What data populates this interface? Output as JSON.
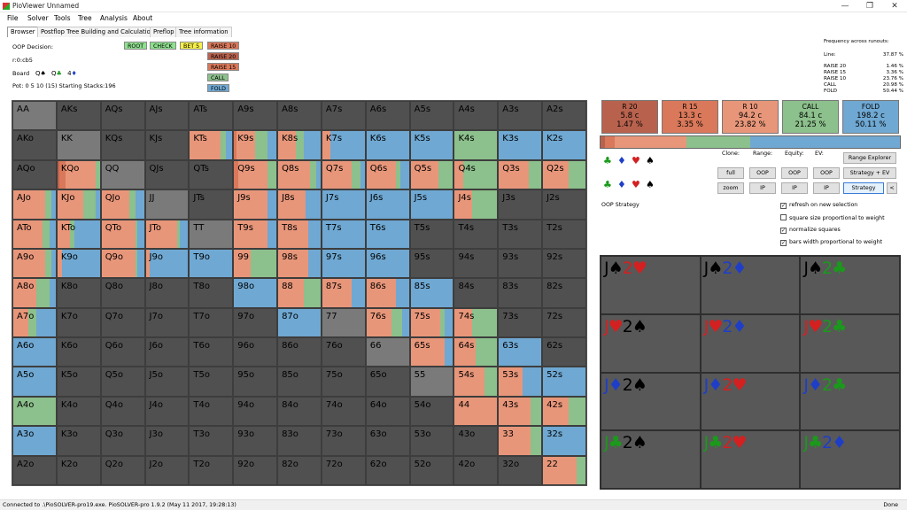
{
  "window": {
    "title": "PioViewer Unnamed",
    "minimize": "—",
    "restore": "❐",
    "close": "✕"
  },
  "menu": [
    "File",
    "Solver",
    "Tools",
    "Tree",
    "Analysis",
    "About"
  ],
  "tabs": [
    "Browser",
    "Postflop Tree Building and Calculations",
    "Preflop",
    "Tree information"
  ],
  "info": {
    "decision": "OOP Decision:",
    "line": "r:0:cb5",
    "board_label": "Board",
    "board_cards": [
      {
        "rank": "Q",
        "suit": "♠",
        "color": "#000000"
      },
      {
        "rank": "Q",
        "suit": "♣",
        "color": "#1a9a1a"
      },
      {
        "rank": "4",
        "suit": "♦",
        "color": "#1e3ec8"
      }
    ],
    "pot": "Pot: 0 5 10 (15) Starting Stacks:196"
  },
  "tree_buttons": {
    "root": "ROOT",
    "check": "CHECK",
    "bet": "BET 5",
    "raise10": "RAISE 10",
    "raise20": "RAISE 20",
    "raise15": "RAISE 15",
    "call": "CALL",
    "fold": "FOLD"
  },
  "frequency": {
    "title": "Frequency across runouts:",
    "rows": [
      {
        "label": "Line:",
        "value": "37.87 %"
      },
      {
        "label": "RAISE 20",
        "value": "1.46 %"
      },
      {
        "label": "RAISE 15",
        "value": "3.36 %"
      },
      {
        "label": "RAISE 10",
        "value": "23.76 %"
      },
      {
        "label": "CALL",
        "value": "20.98 %"
      },
      {
        "label": "FOLD",
        "value": "50.44 %"
      }
    ]
  },
  "colors": {
    "r20": "#b8624e",
    "r15": "#d9785a",
    "r10": "#e8967a",
    "call": "#8cc08c",
    "fold": "#6fa8d2",
    "empty": "#505050"
  },
  "strategy_boxes": [
    {
      "name": "R 20",
      "combos": "5.8 c",
      "pct": "1.47 %",
      "color": "#b8624e"
    },
    {
      "name": "R 15",
      "combos": "13.3 c",
      "pct": "3.35 %",
      "color": "#d9785a"
    },
    {
      "name": "R 10",
      "combos": "94.2 c",
      "pct": "23.82 %",
      "color": "#e8967a"
    },
    {
      "name": "CALL",
      "combos": "84.1 c",
      "pct": "21.25 %",
      "color": "#8cc08c"
    },
    {
      "name": "FOLD",
      "combos": "198.2 c",
      "pct": "50.11 %",
      "color": "#6fa8d2"
    }
  ],
  "strategy_bar": [
    1.47,
    3.35,
    23.82,
    21.25,
    50.11
  ],
  "controls": {
    "clone": "Clone:",
    "range": "Range:",
    "equity": "Equity:",
    "ev": "EV:",
    "full": "full",
    "zoom": "zoom",
    "oop": "OOP",
    "ip": "IP",
    "range_explorer": "Range Explorer",
    "strategy_ev": "Strategy + EV",
    "strategy": "Strategy",
    "back": "<",
    "oop_strategy": "OOP Strategy",
    "chk_refresh": "refresh on new selection",
    "chk_square": "square size proportional to weight",
    "chk_normalize": "normalize squares",
    "chk_bars": "bars width proportional to weight"
  },
  "hand_matrix": [
    [
      {
        "h": "AA",
        "s": []
      },
      {
        "h": "AKs",
        "s": []
      },
      {
        "h": "AQs",
        "s": []
      },
      {
        "h": "AJs",
        "s": []
      },
      {
        "h": "ATs",
        "s": []
      },
      {
        "h": "A9s",
        "s": []
      },
      {
        "h": "A8s",
        "s": []
      },
      {
        "h": "A7s",
        "s": []
      },
      {
        "h": "A6s",
        "s": []
      },
      {
        "h": "A5s",
        "s": []
      },
      {
        "h": "A4s",
        "s": []
      },
      {
        "h": "A3s",
        "s": []
      },
      {
        "h": "A2s",
        "s": []
      }
    ],
    [
      {
        "h": "AKo",
        "s": []
      },
      {
        "h": "KK",
        "s": []
      },
      {
        "h": "KQs",
        "s": []
      },
      {
        "h": "KJs",
        "s": []
      },
      {
        "h": "KTs",
        "s": [
          0,
          0,
          72,
          12,
          16
        ]
      },
      {
        "h": "K9s",
        "s": [
          0,
          5,
          45,
          30,
          20
        ]
      },
      {
        "h": "K8s",
        "s": [
          0,
          0,
          42,
          18,
          40
        ]
      },
      {
        "h": "K7s",
        "s": [
          0,
          0,
          20,
          0,
          80
        ]
      },
      {
        "h": "K6s",
        "s": [
          0,
          0,
          0,
          0,
          100
        ]
      },
      {
        "h": "K5s",
        "s": [
          0,
          0,
          0,
          0,
          100
        ]
      },
      {
        "h": "K4s",
        "s": [
          0,
          0,
          0,
          100,
          0
        ]
      },
      {
        "h": "K3s",
        "s": [
          0,
          0,
          0,
          0,
          100
        ]
      },
      {
        "h": "K2s",
        "s": [
          0,
          0,
          0,
          0,
          100
        ]
      }
    ],
    [
      {
        "h": "AQo",
        "s": []
      },
      {
        "h": "KQo",
        "s": [
          5,
          15,
          70,
          10,
          0
        ]
      },
      {
        "h": "QQ",
        "s": []
      },
      {
        "h": "QJs",
        "s": []
      },
      {
        "h": "QTs",
        "s": []
      },
      {
        "h": "Q9s",
        "s": [
          0,
          10,
          70,
          20,
          0
        ]
      },
      {
        "h": "Q8s",
        "s": [
          0,
          0,
          75,
          15,
          10
        ]
      },
      {
        "h": "Q7s",
        "s": [
          0,
          0,
          70,
          20,
          10
        ]
      },
      {
        "h": "Q6s",
        "s": [
          0,
          0,
          70,
          10,
          20
        ]
      },
      {
        "h": "Q5s",
        "s": [
          0,
          0,
          65,
          35,
          0
        ]
      },
      {
        "h": "Q4s",
        "s": [
          0,
          0,
          20,
          80,
          0
        ]
      },
      {
        "h": "Q3s",
        "s": [
          0,
          0,
          70,
          30,
          0
        ]
      },
      {
        "h": "Q2s",
        "s": [
          0,
          0,
          60,
          40,
          0
        ]
      }
    ],
    [
      {
        "h": "AJo",
        "s": [
          0,
          0,
          75,
          15,
          10
        ]
      },
      {
        "h": "KJo",
        "s": [
          0,
          0,
          60,
          30,
          10
        ]
      },
      {
        "h": "QJo",
        "s": [
          0,
          0,
          65,
          15,
          20
        ]
      },
      {
        "h": "JJ",
        "s": []
      },
      {
        "h": "JTs",
        "s": []
      },
      {
        "h": "J9s",
        "s": [
          0,
          0,
          80,
          0,
          20
        ]
      },
      {
        "h": "J8s",
        "s": [
          0,
          0,
          65,
          0,
          35
        ]
      },
      {
        "h": "J7s",
        "s": [
          0,
          0,
          0,
          0,
          100
        ]
      },
      {
        "h": "J6s",
        "s": [
          0,
          0,
          0,
          0,
          100
        ]
      },
      {
        "h": "J5s",
        "s": [
          0,
          0,
          0,
          0,
          100
        ]
      },
      {
        "h": "J4s",
        "s": [
          0,
          0,
          40,
          60,
          0
        ]
      },
      {
        "h": "J3s",
        "s": []
      },
      {
        "h": "J2s",
        "s": []
      }
    ],
    [
      {
        "h": "ATo",
        "s": [
          0,
          0,
          70,
          15,
          15
        ]
      },
      {
        "h": "KTo",
        "s": [
          0,
          0,
          30,
          10,
          60
        ]
      },
      {
        "h": "QTo",
        "s": [
          0,
          0,
          80,
          5,
          15
        ]
      },
      {
        "h": "JTo",
        "s": [
          0,
          0,
          75,
          5,
          20
        ]
      },
      {
        "h": "TT",
        "s": []
      },
      {
        "h": "T9s",
        "s": [
          0,
          0,
          80,
          0,
          20
        ]
      },
      {
        "h": "T8s",
        "s": [
          0,
          0,
          70,
          0,
          30
        ]
      },
      {
        "h": "T7s",
        "s": [
          0,
          0,
          0,
          0,
          100
        ]
      },
      {
        "h": "T6s",
        "s": [
          0,
          0,
          0,
          0,
          100
        ]
      },
      {
        "h": "T5s",
        "s": []
      },
      {
        "h": "T4s",
        "s": []
      },
      {
        "h": "T3s",
        "s": []
      },
      {
        "h": "T2s",
        "s": []
      }
    ],
    [
      {
        "h": "A9o",
        "s": [
          0,
          0,
          75,
          15,
          10
        ]
      },
      {
        "h": "K9o",
        "s": [
          0,
          0,
          10,
          0,
          90
        ]
      },
      {
        "h": "Q9o",
        "s": [
          0,
          0,
          80,
          5,
          15
        ]
      },
      {
        "h": "J9o",
        "s": [
          0,
          0,
          10,
          0,
          90
        ]
      },
      {
        "h": "T9o",
        "s": [
          0,
          0,
          0,
          0,
          100
        ]
      },
      {
        "h": "99",
        "s": [
          0,
          0,
          40,
          60,
          0
        ]
      },
      {
        "h": "98s",
        "s": [
          0,
          0,
          70,
          0,
          30
        ]
      },
      {
        "h": "97s",
        "s": [
          0,
          0,
          0,
          0,
          100
        ]
      },
      {
        "h": "96s",
        "s": [
          0,
          0,
          0,
          0,
          100
        ]
      },
      {
        "h": "95s",
        "s": []
      },
      {
        "h": "94s",
        "s": []
      },
      {
        "h": "93s",
        "s": []
      },
      {
        "h": "92s",
        "s": []
      }
    ],
    [
      {
        "h": "A8o",
        "s": [
          0,
          0,
          55,
          30,
          15
        ]
      },
      {
        "h": "K8o",
        "s": []
      },
      {
        "h": "Q8o",
        "s": []
      },
      {
        "h": "J8o",
        "s": []
      },
      {
        "h": "T8o",
        "s": []
      },
      {
        "h": "98o",
        "s": [
          0,
          0,
          0,
          0,
          100
        ]
      },
      {
        "h": "88",
        "s": [
          0,
          0,
          60,
          40,
          0
        ]
      },
      {
        "h": "87s",
        "s": [
          0,
          0,
          70,
          0,
          30
        ]
      },
      {
        "h": "86s",
        "s": [
          0,
          0,
          70,
          0,
          30
        ]
      },
      {
        "h": "85s",
        "s": [
          0,
          0,
          0,
          0,
          100
        ]
      },
      {
        "h": "84s",
        "s": []
      },
      {
        "h": "83s",
        "s": []
      },
      {
        "h": "82s",
        "s": []
      }
    ],
    [
      {
        "h": "A7o",
        "s": [
          0,
          0,
          35,
          20,
          45
        ]
      },
      {
        "h": "K7o",
        "s": []
      },
      {
        "h": "Q7o",
        "s": []
      },
      {
        "h": "J7o",
        "s": []
      },
      {
        "h": "T7o",
        "s": []
      },
      {
        "h": "97o",
        "s": []
      },
      {
        "h": "87o",
        "s": [
          0,
          0,
          0,
          0,
          100
        ]
      },
      {
        "h": "77",
        "s": []
      },
      {
        "h": "76s",
        "s": [
          0,
          0,
          60,
          25,
          15
        ]
      },
      {
        "h": "75s",
        "s": [
          0,
          0,
          70,
          10,
          20
        ]
      },
      {
        "h": "74s",
        "s": [
          0,
          0,
          40,
          60,
          0
        ]
      },
      {
        "h": "73s",
        "s": []
      },
      {
        "h": "72s",
        "s": []
      }
    ],
    [
      {
        "h": "A6o",
        "s": [
          0,
          0,
          0,
          0,
          100
        ]
      },
      {
        "h": "K6o",
        "s": []
      },
      {
        "h": "Q6o",
        "s": []
      },
      {
        "h": "J6o",
        "s": []
      },
      {
        "h": "T6o",
        "s": []
      },
      {
        "h": "96o",
        "s": []
      },
      {
        "h": "86o",
        "s": []
      },
      {
        "h": "76o",
        "s": []
      },
      {
        "h": "66",
        "s": []
      },
      {
        "h": "65s",
        "s": [
          0,
          0,
          80,
          0,
          20
        ]
      },
      {
        "h": "64s",
        "s": [
          0,
          0,
          50,
          50,
          0
        ]
      },
      {
        "h": "63s",
        "s": [
          0,
          0,
          0,
          0,
          100
        ]
      },
      {
        "h": "62s",
        "s": []
      }
    ],
    [
      {
        "h": "A5o",
        "s": [
          0,
          0,
          0,
          0,
          100
        ]
      },
      {
        "h": "K5o",
        "s": []
      },
      {
        "h": "Q5o",
        "s": []
      },
      {
        "h": "J5o",
        "s": []
      },
      {
        "h": "T5o",
        "s": []
      },
      {
        "h": "95o",
        "s": []
      },
      {
        "h": "85o",
        "s": []
      },
      {
        "h": "75o",
        "s": []
      },
      {
        "h": "65o",
        "s": []
      },
      {
        "h": "55",
        "s": []
      },
      {
        "h": "54s",
        "s": [
          0,
          0,
          70,
          30,
          0
        ]
      },
      {
        "h": "53s",
        "s": [
          0,
          0,
          55,
          0,
          45
        ]
      },
      {
        "h": "52s",
        "s": [
          0,
          0,
          0,
          0,
          100
        ]
      }
    ],
    [
      {
        "h": "A4o",
        "s": [
          0,
          0,
          0,
          100,
          0
        ]
      },
      {
        "h": "K4o",
        "s": []
      },
      {
        "h": "Q4o",
        "s": []
      },
      {
        "h": "J4o",
        "s": []
      },
      {
        "h": "T4o",
        "s": []
      },
      {
        "h": "94o",
        "s": []
      },
      {
        "h": "84o",
        "s": []
      },
      {
        "h": "74o",
        "s": []
      },
      {
        "h": "64o",
        "s": []
      },
      {
        "h": "54o",
        "s": []
      },
      {
        "h": "44",
        "s": [
          0,
          0,
          100,
          0,
          0
        ]
      },
      {
        "h": "43s",
        "s": [
          0,
          0,
          75,
          25,
          0
        ]
      },
      {
        "h": "42s",
        "s": [
          0,
          0,
          60,
          40,
          0
        ]
      }
    ],
    [
      {
        "h": "A3o",
        "s": [
          0,
          0,
          0,
          0,
          100
        ]
      },
      {
        "h": "K3o",
        "s": []
      },
      {
        "h": "Q3o",
        "s": []
      },
      {
        "h": "J3o",
        "s": []
      },
      {
        "h": "T3o",
        "s": []
      },
      {
        "h": "93o",
        "s": []
      },
      {
        "h": "83o",
        "s": []
      },
      {
        "h": "73o",
        "s": []
      },
      {
        "h": "63o",
        "s": []
      },
      {
        "h": "53o",
        "s": []
      },
      {
        "h": "43o",
        "s": []
      },
      {
        "h": "33",
        "s": [
          0,
          0,
          75,
          25,
          0
        ]
      },
      {
        "h": "32s",
        "s": [
          0,
          0,
          0,
          0,
          100
        ]
      }
    ],
    [
      {
        "h": "A2o",
        "s": []
      },
      {
        "h": "K2o",
        "s": []
      },
      {
        "h": "Q2o",
        "s": []
      },
      {
        "h": "J2o",
        "s": []
      },
      {
        "h": "T2o",
        "s": []
      },
      {
        "h": "92o",
        "s": []
      },
      {
        "h": "82o",
        "s": []
      },
      {
        "h": "72o",
        "s": []
      },
      {
        "h": "62o",
        "s": []
      },
      {
        "h": "52o",
        "s": []
      },
      {
        "h": "42o",
        "s": []
      },
      {
        "h": "32o",
        "s": []
      },
      {
        "h": "22",
        "s": [
          0,
          0,
          80,
          20,
          0
        ]
      }
    ]
  ],
  "combos": [
    {
      "c": [
        {
          "r": "J",
          "s": "♠",
          "k": "#000000"
        },
        {
          "r": "2",
          "s": "♥",
          "k": "#d42020"
        }
      ]
    },
    {
      "c": [
        {
          "r": "J",
          "s": "♠",
          "k": "#000000"
        },
        {
          "r": "2",
          "s": "♦",
          "k": "#1e3ec8"
        }
      ]
    },
    {
      "c": [
        {
          "r": "J",
          "s": "♠",
          "k": "#000000"
        },
        {
          "r": "2",
          "s": "♣",
          "k": "#1a9a1a"
        }
      ]
    },
    {
      "c": [
        {
          "r": "J",
          "s": "♥",
          "k": "#d42020"
        },
        {
          "r": "2",
          "s": "♠",
          "k": "#000000"
        }
      ]
    },
    {
      "c": [
        {
          "r": "J",
          "s": "♥",
          "k": "#d42020"
        },
        {
          "r": "2",
          "s": "♦",
          "k": "#1e3ec8"
        }
      ]
    },
    {
      "c": [
        {
          "r": "J",
          "s": "♥",
          "k": "#d42020"
        },
        {
          "r": "2",
          "s": "♣",
          "k": "#1a9a1a"
        }
      ]
    },
    {
      "c": [
        {
          "r": "J",
          "s": "♦",
          "k": "#1e3ec8"
        },
        {
          "r": "2",
          "s": "♠",
          "k": "#000000"
        }
      ]
    },
    {
      "c": [
        {
          "r": "J",
          "s": "♦",
          "k": "#1e3ec8"
        },
        {
          "r": "2",
          "s": "♥",
          "k": "#d42020"
        }
      ]
    },
    {
      "c": [
        {
          "r": "J",
          "s": "♦",
          "k": "#1e3ec8"
        },
        {
          "r": "2",
          "s": "♣",
          "k": "#1a9a1a"
        }
      ]
    },
    {
      "c": [
        {
          "r": "J",
          "s": "♣",
          "k": "#1a9a1a"
        },
        {
          "r": "2",
          "s": "♠",
          "k": "#000000"
        }
      ]
    },
    {
      "c": [
        {
          "r": "J",
          "s": "♣",
          "k": "#1a9a1a"
        },
        {
          "r": "2",
          "s": "♥",
          "k": "#d42020"
        }
      ]
    },
    {
      "c": [
        {
          "r": "J",
          "s": "♣",
          "k": "#1a9a1a"
        },
        {
          "r": "2",
          "s": "♦",
          "k": "#1e3ec8"
        }
      ]
    }
  ],
  "status": {
    "left": "Connected to .\\PioSOLVER-pro19.exe. PioSOLVER-pro 1.9.2 (May 11 2017, 19:28:13)",
    "right": "Done"
  }
}
